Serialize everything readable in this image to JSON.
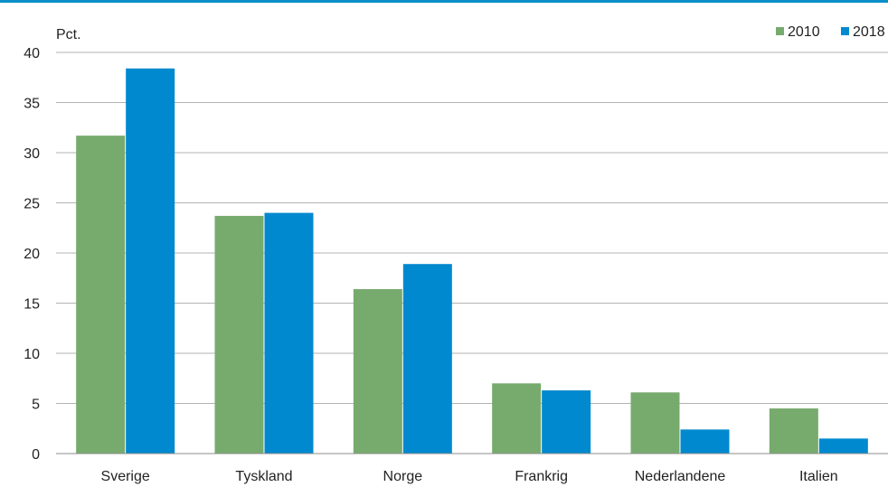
{
  "chart_data": {
    "type": "bar",
    "title": "",
    "ylabel": "Pct.",
    "xlabel": "",
    "ylim": [
      0,
      40
    ],
    "yticks": [
      0,
      5,
      10,
      15,
      20,
      25,
      30,
      35,
      40
    ],
    "categories": [
      "Sverige",
      "Tyskland",
      "Norge",
      "Frankrig",
      "Nederlandene",
      "Italien"
    ],
    "series": [
      {
        "name": "2010",
        "values": [
          31.7,
          23.7,
          16.4,
          7.0,
          6.1,
          4.5
        ],
        "color": "#77ab6e"
      },
      {
        "name": "2018",
        "values": [
          38.4,
          24.0,
          18.9,
          6.3,
          2.4,
          1.5
        ],
        "color": "#0089cf"
      }
    ],
    "grid": true,
    "legend": "top-right"
  }
}
